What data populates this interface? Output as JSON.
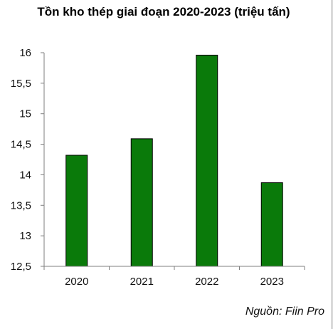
{
  "chart_data": {
    "type": "bar",
    "title": "Tồn kho thép giai đoạn 2020-2023 (triệu tấn)",
    "categories": [
      "2020",
      "2021",
      "2022",
      "2023"
    ],
    "values": [
      14.32,
      14.59,
      15.96,
      13.87
    ],
    "ylim": [
      12.5,
      16
    ],
    "yticks": [
      "12,5",
      "13",
      "13,5",
      "14",
      "14,5",
      "15",
      "15,5",
      "16"
    ],
    "bar_color": "#0a7a0a",
    "grid": false,
    "legend": "none"
  },
  "source": "Nguồn: Fiin Pro"
}
